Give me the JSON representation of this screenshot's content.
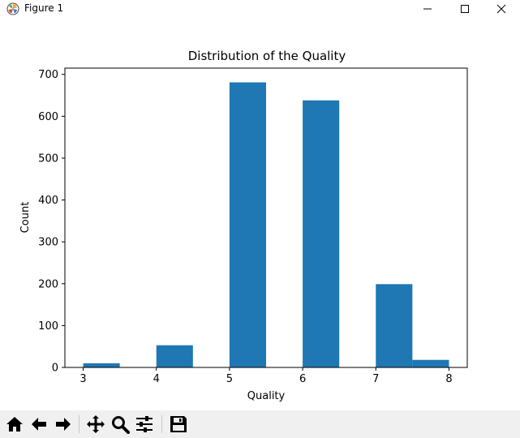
{
  "window": {
    "title": "Figure 1",
    "controls": {
      "minimize_icon": "minimize-icon",
      "maximize_icon": "maximize-icon",
      "close_icon": "close-icon"
    }
  },
  "toolbar": {
    "buttons": [
      {
        "icon": "home-icon"
      },
      {
        "icon": "back-arrow-icon"
      },
      {
        "icon": "forward-arrow-icon"
      },
      {
        "icon": "pan-icon"
      },
      {
        "icon": "zoom-icon"
      },
      {
        "icon": "configure-subplots-icon"
      },
      {
        "icon": "save-icon"
      }
    ]
  },
  "chart_data": {
    "type": "bar",
    "title": "Distribution of the Quality",
    "xlabel": "Quality",
    "ylabel": "Count",
    "xlim": [
      2.75,
      8.25
    ],
    "ylim": [
      0,
      715
    ],
    "xticks": [
      3,
      4,
      5,
      6,
      7,
      8
    ],
    "yticks": [
      0,
      100,
      200,
      300,
      400,
      500,
      600,
      700
    ],
    "bins": [
      {
        "x0": 3.0,
        "x1": 3.5,
        "count": 10
      },
      {
        "x0": 3.5,
        "x1": 4.0,
        "count": 0
      },
      {
        "x0": 4.0,
        "x1": 4.5,
        "count": 53
      },
      {
        "x0": 4.5,
        "x1": 5.0,
        "count": 0
      },
      {
        "x0": 5.0,
        "x1": 5.5,
        "count": 681
      },
      {
        "x0": 5.5,
        "x1": 6.0,
        "count": 0
      },
      {
        "x0": 6.0,
        "x1": 6.5,
        "count": 638
      },
      {
        "x0": 6.5,
        "x1": 7.0,
        "count": 0
      },
      {
        "x0": 7.0,
        "x1": 7.5,
        "count": 199
      },
      {
        "x0": 7.5,
        "x1": 8.0,
        "count": 18
      }
    ],
    "bar_color": "#1f77b4",
    "grid": false,
    "legend": "none"
  }
}
